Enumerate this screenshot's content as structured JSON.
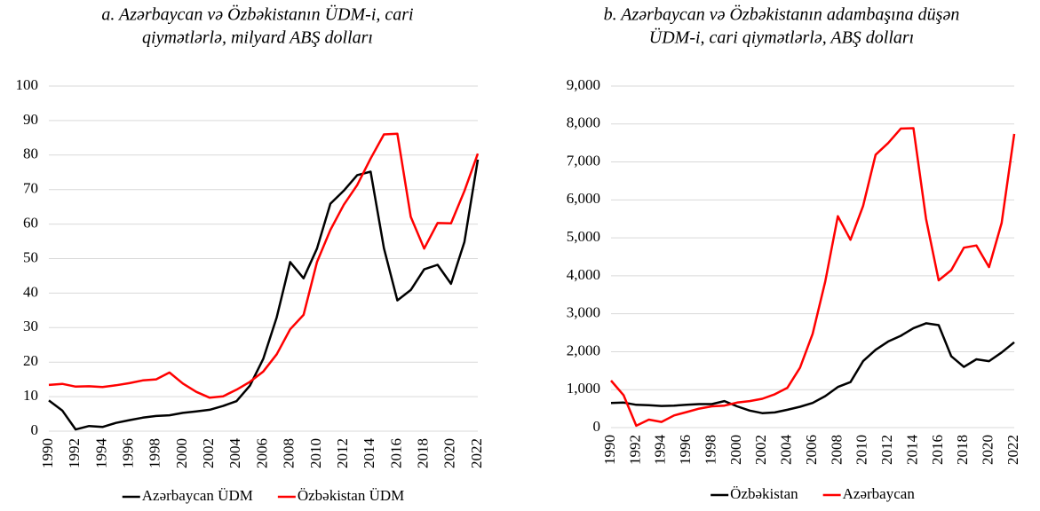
{
  "chart_data": [
    {
      "type": "line",
      "title": [
        "a. Azərbaycan və Özbəkistanın ÜDM-i, cari",
        "qiymətlərlə, milyard ABŞ dolları"
      ],
      "x": [
        1990,
        1991,
        1992,
        1993,
        1994,
        1995,
        1996,
        1997,
        1998,
        1999,
        2000,
        2001,
        2002,
        2003,
        2004,
        2005,
        2006,
        2007,
        2008,
        2009,
        2010,
        2011,
        2012,
        2013,
        2014,
        2015,
        2016,
        2017,
        2018,
        2019,
        2020,
        2021,
        2022
      ],
      "xlim": [
        1990,
        2022
      ],
      "xticks": [
        1990,
        1992,
        1994,
        1996,
        1998,
        2000,
        2002,
        2004,
        2006,
        2008,
        2010,
        2012,
        2014,
        2016,
        2018,
        2020,
        2022
      ],
      "ylim": [
        0,
        100
      ],
      "yticks": [
        0,
        10,
        20,
        30,
        40,
        50,
        60,
        70,
        80,
        90,
        100
      ],
      "grid": true,
      "legend": "bottom",
      "series": [
        {
          "name": "Azərbaycan ÜDM",
          "color": "#000000",
          "values": [
            8.9,
            6,
            0.5,
            1.5,
            1.2,
            2.4,
            3.2,
            3.9,
            4.4,
            4.6,
            5.3,
            5.7,
            6.2,
            7.3,
            8.7,
            13.2,
            21,
            33,
            49,
            44.3,
            52.9,
            65.9,
            69.7,
            74.2,
            75.2,
            53,
            37.9,
            40.9,
            46.9,
            48.2,
            42.7,
            54.8,
            78.7
          ]
        },
        {
          "name": "Özbəkistan ÜDM",
          "color": "#ff0000",
          "values": [
            13.4,
            13.7,
            12.9,
            13,
            12.8,
            13.3,
            13.9,
            14.7,
            15,
            17,
            13.8,
            11.4,
            9.7,
            10.1,
            12,
            14.3,
            17.3,
            22.3,
            29.5,
            33.7,
            49,
            58.3,
            65.6,
            71.3,
            79,
            86,
            86.2,
            62.1,
            52.9,
            60.3,
            60.2,
            69.6,
            80.4
          ]
        }
      ]
    },
    {
      "type": "line",
      "title": [
        "b. Azərbaycan və Özbəkistanın adambaşına düşən",
        "ÜDM-i, cari qiymətlərlə, ABŞ dolları"
      ],
      "x": [
        1990,
        1991,
        1992,
        1993,
        1994,
        1995,
        1996,
        1997,
        1998,
        1999,
        2000,
        2001,
        2002,
        2003,
        2004,
        2005,
        2006,
        2007,
        2008,
        2009,
        2010,
        2011,
        2012,
        2013,
        2014,
        2015,
        2016,
        2017,
        2018,
        2019,
        2020,
        2021,
        2022
      ],
      "xlim": [
        1990,
        2022
      ],
      "xticks": [
        1990,
        1992,
        1994,
        1996,
        1998,
        2000,
        2002,
        2004,
        2006,
        2008,
        2010,
        2012,
        2014,
        2016,
        2018,
        2020,
        2022
      ],
      "ylim": [
        0,
        9000
      ],
      "yticks": [
        0,
        {
          "value": 1000,
          "label": "1,000"
        },
        {
          "value": 2000,
          "label": "2,000"
        },
        {
          "value": 3000,
          "label": "3,000"
        },
        {
          "value": 4000,
          "label": "4,000"
        },
        {
          "value": 5000,
          "label": "5,000"
        },
        {
          "value": 6000,
          "label": "6,000"
        },
        {
          "value": 7000,
          "label": "7,000"
        },
        {
          "value": 8000,
          "label": "8,000"
        },
        {
          "value": 9000,
          "label": "9,000"
        }
      ],
      "grid": true,
      "legend": "bottom",
      "series": [
        {
          "name": "Özbəkistan",
          "color": "#000000",
          "values": [
            650,
            660,
            600,
            590,
            570,
            580,
            600,
            620,
            620,
            700,
            560,
            450,
            380,
            400,
            470,
            550,
            650,
            830,
            1070,
            1200,
            1750,
            2050,
            2270,
            2420,
            2620,
            2750,
            2700,
            1880,
            1600,
            1800,
            1750,
            1980,
            2250
          ]
        },
        {
          "name": "Azərbaycan",
          "color": "#ff0000",
          "values": [
            1240,
            850,
            50,
            210,
            150,
            320,
            410,
            500,
            560,
            580,
            660,
            700,
            760,
            880,
            1050,
            1580,
            2470,
            3850,
            5570,
            4950,
            5840,
            7190,
            7500,
            7880,
            7890,
            5500,
            3880,
            4150,
            4740,
            4800,
            4230,
            5390,
            7740
          ]
        }
      ]
    }
  ]
}
